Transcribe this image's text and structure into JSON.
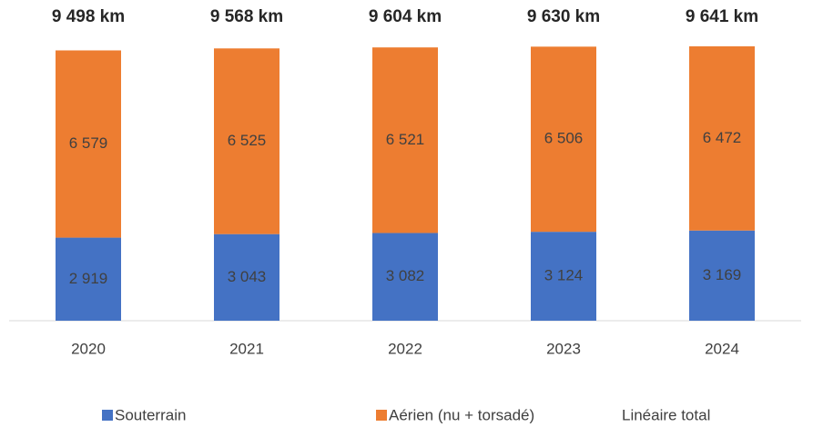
{
  "chart_data": {
    "type": "stacked-bar",
    "categories": [
      "2020",
      "2021",
      "2022",
      "2023",
      "2024"
    ],
    "series": [
      {
        "name": "Souterrain",
        "color": "#4472c4",
        "values": [
          2919,
          3043,
          3082,
          3124,
          3169
        ],
        "value_labels": [
          "2 919",
          "3 043",
          "3 082",
          "3 124",
          "3 169"
        ]
      },
      {
        "name": "Aérien (nu + torsadé)",
        "color": "#ed7d31",
        "values": [
          6579,
          6525,
          6521,
          6506,
          6472
        ],
        "value_labels": [
          "6 579",
          "6 525",
          "6 521",
          "6 506",
          "6 472"
        ]
      },
      {
        "name": "Linéaire total",
        "color": null,
        "values": [
          9498,
          9568,
          9604,
          9630,
          9641
        ],
        "value_labels": [
          "9 498 km",
          "9 568 km",
          "9 604 km",
          "9 630 km",
          "9 641 km"
        ]
      }
    ],
    "legend": "bottom"
  }
}
